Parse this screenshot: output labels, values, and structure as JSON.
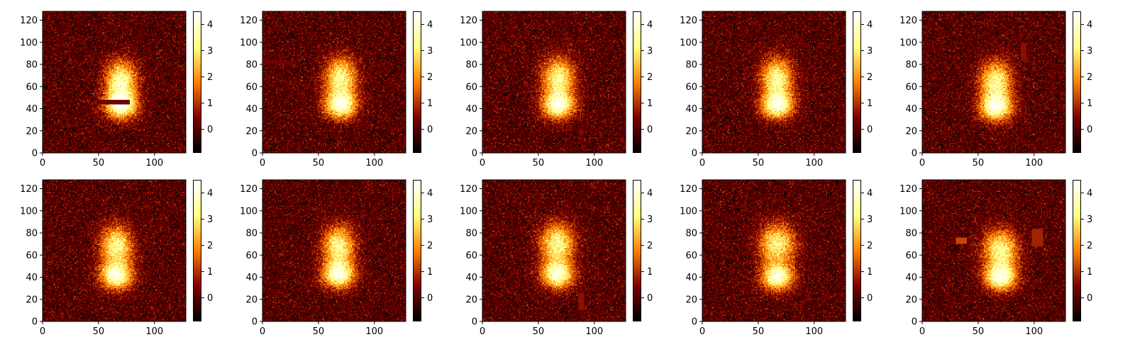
{
  "chart_data": {
    "type": "heatmap",
    "colormap": "afmhot",
    "layout": "2 rows x 5 columns",
    "grid": false,
    "x_ticks": [
      0,
      50,
      100
    ],
    "y_ticks": [
      0,
      20,
      40,
      60,
      80,
      100,
      120
    ],
    "colorbar_ticks": [
      0,
      1,
      2,
      3,
      4
    ],
    "xlim": [
      0,
      128
    ],
    "ylim": [
      0,
      128
    ],
    "clim": [
      -0.9,
      4.5
    ],
    "panels": [
      {
        "blobs": [
          [
            70,
            65,
            14,
            18,
            3.6
          ],
          [
            70,
            43,
            14,
            12,
            4.0
          ]
        ],
        "occlusions": [
          [
            48,
            44,
            30,
            4,
            0.3
          ]
        ]
      },
      {
        "blobs": [
          [
            70,
            68,
            14,
            18,
            3.4
          ],
          [
            70,
            43,
            14,
            12,
            4.0
          ]
        ],
        "occlusions": [
          [
            0,
            80,
            30,
            4,
            0.3
          ]
        ]
      },
      {
        "blobs": [
          [
            68,
            68,
            14,
            18,
            3.4
          ],
          [
            68,
            43,
            14,
            12,
            4.0
          ]
        ],
        "occlusions": []
      },
      {
        "blobs": [
          [
            67,
            68,
            14,
            18,
            3.4
          ],
          [
            67,
            43,
            14,
            12,
            4.0
          ]
        ],
        "occlusions": []
      },
      {
        "blobs": [
          [
            66,
            65,
            14,
            18,
            3.4
          ],
          [
            66,
            41,
            14,
            12,
            4.0
          ]
        ],
        "occlusions": [
          [
            88,
            84,
            5,
            16,
            0.6
          ]
        ]
      },
      {
        "blobs": [
          [
            66,
            68,
            14,
            18,
            3.4
          ],
          [
            66,
            41,
            14,
            12,
            4.0
          ]
        ],
        "occlusions": []
      },
      {
        "blobs": [
          [
            68,
            68,
            14,
            18,
            3.4
          ],
          [
            68,
            42,
            14,
            12,
            4.0
          ]
        ],
        "occlusions": []
      },
      {
        "blobs": [
          [
            67,
            70,
            15,
            18,
            3.4
          ],
          [
            67,
            42,
            14,
            12,
            4.0
          ]
        ],
        "occlusions": [
          [
            86,
            10,
            5,
            16,
            0.6
          ]
        ]
      },
      {
        "blobs": [
          [
            67,
            70,
            16,
            18,
            3.2
          ],
          [
            67,
            40,
            14,
            12,
            4.0
          ]
        ],
        "occlusions": []
      },
      {
        "blobs": [
          [
            70,
            65,
            15,
            18,
            3.4
          ],
          [
            70,
            40,
            14,
            12,
            4.0
          ]
        ],
        "occlusions": [
          [
            30,
            70,
            10,
            6,
            1.2
          ],
          [
            98,
            68,
            10,
            16,
            0.8
          ]
        ]
      }
    ]
  }
}
